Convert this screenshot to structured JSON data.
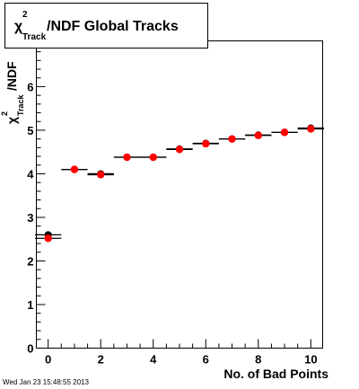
{
  "chart_data": {
    "type": "scatter",
    "title": "χ²Track/NDF  Global Tracks",
    "title_parts": {
      "chi": "χ",
      "sup": "2",
      "sub": "Track",
      "rest": "/NDF  Global Tracks"
    },
    "xlabel": "No. of Bad Points",
    "ylabel_parts": {
      "chi": "χ",
      "sup": "2",
      "sub": "Track",
      "rest": "/NDF"
    },
    "xlim": [
      -0.45,
      10.45
    ],
    "ylim": [
      0,
      7.05
    ],
    "x_ticks": [
      0,
      2,
      4,
      6,
      8,
      10
    ],
    "y_ticks": [
      0,
      1,
      2,
      3,
      4,
      5,
      6,
      7
    ],
    "grid": false,
    "marker_color": "#ff0000",
    "series": [
      {
        "marker": "black-dot",
        "x": [
          0,
          1,
          2,
          3,
          4,
          5,
          6,
          7,
          8,
          9,
          10
        ],
        "y": [
          2.6,
          4.1,
          4.0,
          4.38,
          4.38,
          4.57,
          4.7,
          4.8,
          4.89,
          4.95,
          5.05
        ],
        "xerr": 0.5
      },
      {
        "marker": "red-dot",
        "x": [
          0,
          1,
          2,
          3,
          4,
          5,
          6,
          7,
          8,
          9,
          10
        ],
        "y": [
          2.52,
          4.1,
          3.98,
          4.38,
          4.38,
          4.56,
          4.69,
          4.8,
          4.88,
          4.95,
          5.03
        ],
        "xerr": 0.5
      }
    ]
  },
  "timestamp": "Wed Jan 23 15:48:55 2013"
}
